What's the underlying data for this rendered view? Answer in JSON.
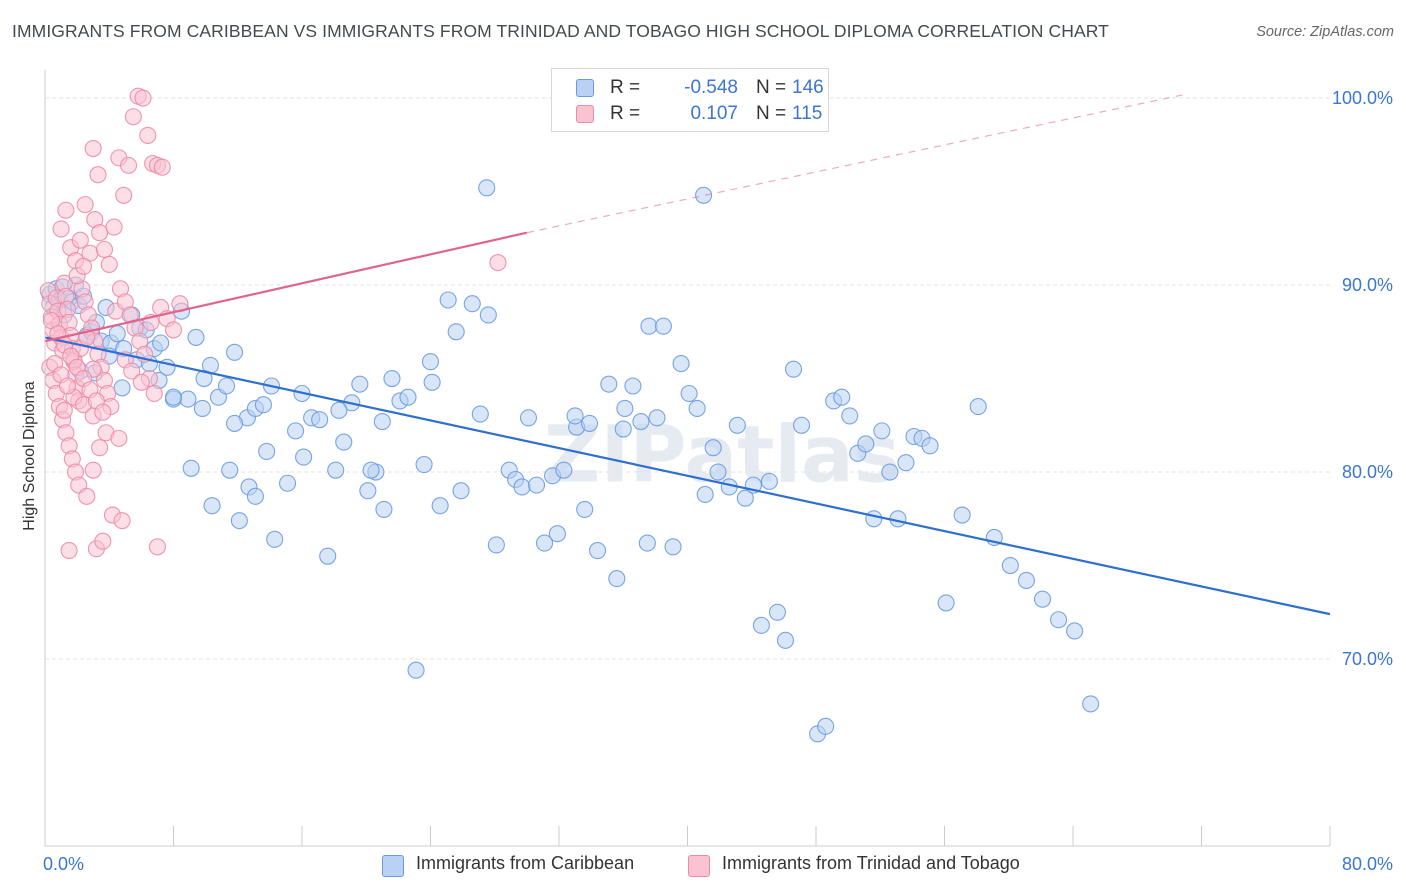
{
  "title": "IMMIGRANTS FROM CARIBBEAN VS IMMIGRANTS FROM TRINIDAD AND TOBAGO HIGH SCHOOL DIPLOMA CORRELATION CHART",
  "source": "Source: ZipAtlas.com",
  "watermark": "ZIPatlas",
  "colors": {
    "blue": "#6a9be0",
    "blue_fill": "#b9d1f2",
    "blue_line": "#2e6fd0",
    "pink": "#ec8aa8",
    "pink_fill": "#f9c3d2",
    "pink_line": "#e0648e",
    "value_text": "#3b76d2",
    "grid": "#e3e3e3"
  },
  "legend_top": {
    "rows": [
      {
        "r_label": "R =",
        "r_value": "-0.548",
        "n_label": "N =",
        "n_value": "146"
      },
      {
        "r_label": "R =",
        "r_value": "0.107",
        "n_label": "N =",
        "n_value": "115"
      }
    ]
  },
  "legend_bottom": [
    {
      "label": "Immigrants from Caribbean"
    },
    {
      "label": "Immigrants from Trinidad and Tobago"
    }
  ],
  "chart_data": {
    "type": "scatter",
    "title": "IMMIGRANTS FROM CARIBBEAN VS IMMIGRANTS FROM TRINIDAD AND TOBAGO HIGH SCHOOL DIPLOMA CORRELATION CHART",
    "xlabel": "",
    "ylabel": "High School Diploma",
    "xlim": [
      0,
      80
    ],
    "ylim": [
      60,
      101.5
    ],
    "x_tick_labels": [
      {
        "value": 0,
        "label": "0.0%"
      },
      {
        "value": 80,
        "label": "80.0%"
      }
    ],
    "y_tick_labels": [
      {
        "value": 100,
        "label": "100.0%"
      },
      {
        "value": 90,
        "label": "90.0%"
      },
      {
        "value": 80,
        "label": "80.0%"
      },
      {
        "value": 70,
        "label": "70.0%"
      }
    ],
    "x_minor_ticks": [
      8,
      16,
      24,
      32,
      40,
      48,
      56,
      64,
      72,
      80
    ],
    "grid": true,
    "series": [
      {
        "name": "Immigrants from Caribbean",
        "color": "#6a9be0",
        "R": -0.548,
        "N": 146,
        "trend": {
          "x": [
            0,
            80
          ],
          "y": [
            87.2,
            72.4
          ],
          "style": "solid"
        },
        "points": [
          [
            0.3,
            89.5
          ],
          [
            0.5,
            88.8
          ],
          [
            0.7,
            89.8
          ],
          [
            0.9,
            89.2
          ],
          [
            1.1,
            89.9
          ],
          [
            1.2,
            88.4
          ],
          [
            1.5,
            89.3
          ],
          [
            1.7,
            89.1
          ],
          [
            1.9,
            90.0
          ],
          [
            2.1,
            88.9
          ],
          [
            2.4,
            89.4
          ],
          [
            2.6,
            87.3
          ],
          [
            2.9,
            87.5
          ],
          [
            3.2,
            88.0
          ],
          [
            3.5,
            87.0
          ],
          [
            3.8,
            88.8
          ],
          [
            4.1,
            86.9
          ],
          [
            4.5,
            87.4
          ],
          [
            4.9,
            86.6
          ],
          [
            5.4,
            88.4
          ],
          [
            5.9,
            87.7
          ],
          [
            6.3,
            87.6
          ],
          [
            6.8,
            86.6
          ],
          [
            7.2,
            86.9
          ],
          [
            7.6,
            85.6
          ],
          [
            8.0,
            83.9
          ],
          [
            8.5,
            88.6
          ],
          [
            8.9,
            83.9
          ],
          [
            9.4,
            87.2
          ],
          [
            9.8,
            83.4
          ],
          [
            10.3,
            85.7
          ],
          [
            10.8,
            84.0
          ],
          [
            11.3,
            84.6
          ],
          [
            11.8,
            86.4
          ],
          [
            12.6,
            82.9
          ],
          [
            13.1,
            83.4
          ],
          [
            13.6,
            83.6
          ],
          [
            14.1,
            84.6
          ],
          [
            4.8,
            84.5
          ],
          [
            9.1,
            80.2
          ],
          [
            10.4,
            78.2
          ],
          [
            11.5,
            80.1
          ],
          [
            12.1,
            77.4
          ],
          [
            12.7,
            79.2
          ],
          [
            13.1,
            78.7
          ],
          [
            13.8,
            81.1
          ],
          [
            14.3,
            76.4
          ],
          [
            15.1,
            79.4
          ],
          [
            15.6,
            82.2
          ],
          [
            16.1,
            80.8
          ],
          [
            16.6,
            82.9
          ],
          [
            17.1,
            82.8
          ],
          [
            17.6,
            75.5
          ],
          [
            18.1,
            80.1
          ],
          [
            18.6,
            81.6
          ],
          [
            19.6,
            84.7
          ],
          [
            20.1,
            79.0
          ],
          [
            20.6,
            80.0
          ],
          [
            21.1,
            78.0
          ],
          [
            21.6,
            85.0
          ],
          [
            22.1,
            83.8
          ],
          [
            22.6,
            84.0
          ],
          [
            23.1,
            69.4
          ],
          [
            23.6,
            80.4
          ],
          [
            24.1,
            84.8
          ],
          [
            24.6,
            78.2
          ],
          [
            25.1,
            89.2
          ],
          [
            25.6,
            87.5
          ],
          [
            25.9,
            79.0
          ],
          [
            26.6,
            89.0
          ],
          [
            27.1,
            83.1
          ],
          [
            27.6,
            88.4
          ],
          [
            28.1,
            76.1
          ],
          [
            28.9,
            80.1
          ],
          [
            29.3,
            79.6
          ],
          [
            29.7,
            79.2
          ],
          [
            30.1,
            82.9
          ],
          [
            30.6,
            79.3
          ],
          [
            31.1,
            76.2
          ],
          [
            31.6,
            79.8
          ],
          [
            31.9,
            76.7
          ],
          [
            32.3,
            80.1
          ],
          [
            33.1,
            82.4
          ],
          [
            33.6,
            78.0
          ],
          [
            33.9,
            82.6
          ],
          [
            34.4,
            75.8
          ],
          [
            35.1,
            84.7
          ],
          [
            35.6,
            74.3
          ],
          [
            36.1,
            83.4
          ],
          [
            36.6,
            84.6
          ],
          [
            37.1,
            82.7
          ],
          [
            37.6,
            87.8
          ],
          [
            38.1,
            82.9
          ],
          [
            38.5,
            87.8
          ],
          [
            39.1,
            76.0
          ],
          [
            39.6,
            85.8
          ],
          [
            40.1,
            84.2
          ],
          [
            40.6,
            83.4
          ],
          [
            41.1,
            78.8
          ],
          [
            41.6,
            81.3
          ],
          [
            41.9,
            80.0
          ],
          [
            42.6,
            79.2
          ],
          [
            43.1,
            82.5
          ],
          [
            43.6,
            78.6
          ],
          [
            44.1,
            79.3
          ],
          [
            44.6,
            71.8
          ],
          [
            45.1,
            79.5
          ],
          [
            45.6,
            72.5
          ],
          [
            46.1,
            71.0
          ],
          [
            46.6,
            85.5
          ],
          [
            47.1,
            82.5
          ],
          [
            48.1,
            66.0
          ],
          [
            48.6,
            66.4
          ],
          [
            49.1,
            83.8
          ],
          [
            49.6,
            84.0
          ],
          [
            50.1,
            83.0
          ],
          [
            50.6,
            81.0
          ],
          [
            51.1,
            81.5
          ],
          [
            51.6,
            77.5
          ],
          [
            52.1,
            82.2
          ],
          [
            52.6,
            80.0
          ],
          [
            53.1,
            77.5
          ],
          [
            53.6,
            80.5
          ],
          [
            54.1,
            81.9
          ],
          [
            54.6,
            81.8
          ],
          [
            55.1,
            81.4
          ],
          [
            56.1,
            73.0
          ],
          [
            57.1,
            77.7
          ],
          [
            58.1,
            83.5
          ],
          [
            59.1,
            76.5
          ],
          [
            60.1,
            75.0
          ],
          [
            61.1,
            74.2
          ],
          [
            62.1,
            73.2
          ],
          [
            63.1,
            72.1
          ],
          [
            64.1,
            71.5
          ],
          [
            65.1,
            67.6
          ],
          [
            37.5,
            76.2
          ],
          [
            27.5,
            95.2
          ],
          [
            41.0,
            94.8
          ],
          [
            16.0,
            84.2
          ],
          [
            19.1,
            83.7
          ],
          [
            20.3,
            80.1
          ],
          [
            21.0,
            82.7
          ],
          [
            3.1,
            85.3
          ],
          [
            7.1,
            84.9
          ],
          [
            9.9,
            85.0
          ],
          [
            11.8,
            82.6
          ],
          [
            5.7,
            86.0
          ],
          [
            6.5,
            85.8
          ],
          [
            2.2,
            85.4
          ],
          [
            4.0,
            86.2
          ],
          [
            8.0,
            84.0
          ],
          [
            36.0,
            82.3
          ],
          [
            33.0,
            83.0
          ],
          [
            24.0,
            85.9
          ],
          [
            18.3,
            83.3
          ]
        ]
      },
      {
        "name": "Immigrants from Trinidad and Tobago",
        "color": "#ec8aa8",
        "R": 0.107,
        "N": 115,
        "trend": {
          "x": [
            0,
            30
          ],
          "y": [
            87.0,
            92.8
          ],
          "style": "solid"
        },
        "trend_extension": {
          "x": [
            30,
            71
          ],
          "y": [
            92.8,
            100.2
          ],
          "style": "dashed"
        },
        "points": [
          [
            0.2,
            89.7
          ],
          [
            0.3,
            89.0
          ],
          [
            0.4,
            88.3
          ],
          [
            0.5,
            87.6
          ],
          [
            0.6,
            86.9
          ],
          [
            0.7,
            89.3
          ],
          [
            0.8,
            88.6
          ],
          [
            0.9,
            87.9
          ],
          [
            1.0,
            87.2
          ],
          [
            1.1,
            86.5
          ],
          [
            1.2,
            90.1
          ],
          [
            1.3,
            89.4
          ],
          [
            1.4,
            88.7
          ],
          [
            1.5,
            88.0
          ],
          [
            1.6,
            87.3
          ],
          [
            1.7,
            86.6
          ],
          [
            1.8,
            85.9
          ],
          [
            1.9,
            85.2
          ],
          [
            2.0,
            84.5
          ],
          [
            2.1,
            83.8
          ],
          [
            0.3,
            85.6
          ],
          [
            0.5,
            84.9
          ],
          [
            0.7,
            84.2
          ],
          [
            0.9,
            83.5
          ],
          [
            1.1,
            82.8
          ],
          [
            1.3,
            82.1
          ],
          [
            1.5,
            81.4
          ],
          [
            1.7,
            80.7
          ],
          [
            1.9,
            80.0
          ],
          [
            2.1,
            79.3
          ],
          [
            2.3,
            89.8
          ],
          [
            2.5,
            89.1
          ],
          [
            2.7,
            88.4
          ],
          [
            2.9,
            87.7
          ],
          [
            3.1,
            87.0
          ],
          [
            3.3,
            86.3
          ],
          [
            3.5,
            85.6
          ],
          [
            3.7,
            84.9
          ],
          [
            3.9,
            84.2
          ],
          [
            4.1,
            83.5
          ],
          [
            1.0,
            93.0
          ],
          [
            1.3,
            94.0
          ],
          [
            1.6,
            92.0
          ],
          [
            1.9,
            91.3
          ],
          [
            2.2,
            92.4
          ],
          [
            2.5,
            94.3
          ],
          [
            2.8,
            91.7
          ],
          [
            3.1,
            93.5
          ],
          [
            3.4,
            92.8
          ],
          [
            3.7,
            91.9
          ],
          [
            4.0,
            91.1
          ],
          [
            4.3,
            93.1
          ],
          [
            4.6,
            96.8
          ],
          [
            4.9,
            94.8
          ],
          [
            5.2,
            96.4
          ],
          [
            5.5,
            99.0
          ],
          [
            5.8,
            100.1
          ],
          [
            6.1,
            100.0
          ],
          [
            6.4,
            98.0
          ],
          [
            6.7,
            96.5
          ],
          [
            7.0,
            96.4
          ],
          [
            7.3,
            96.3
          ],
          [
            3.0,
            97.3
          ],
          [
            3.3,
            95.9
          ],
          [
            2.0,
            90.5
          ],
          [
            2.4,
            91.0
          ],
          [
            4.4,
            88.6
          ],
          [
            4.7,
            89.8
          ],
          [
            5.0,
            89.1
          ],
          [
            5.3,
            88.4
          ],
          [
            5.6,
            87.7
          ],
          [
            5.9,
            87.0
          ],
          [
            6.2,
            86.3
          ],
          [
            6.5,
            85.0
          ],
          [
            6.8,
            84.2
          ],
          [
            1.5,
            75.8
          ],
          [
            3.2,
            75.9
          ],
          [
            3.6,
            76.3
          ],
          [
            4.2,
            77.7
          ],
          [
            4.8,
            77.4
          ],
          [
            7.0,
            76.0
          ],
          [
            2.6,
            78.7
          ],
          [
            3.0,
            80.1
          ],
          [
            3.4,
            81.3
          ],
          [
            3.8,
            82.1
          ],
          [
            4.6,
            81.8
          ],
          [
            1.2,
            83.3
          ],
          [
            1.8,
            84.0
          ],
          [
            2.4,
            83.6
          ],
          [
            3.0,
            83.0
          ],
          [
            0.6,
            85.8
          ],
          [
            1.0,
            85.2
          ],
          [
            1.4,
            84.6
          ],
          [
            1.8,
            86.0
          ],
          [
            2.2,
            86.6
          ],
          [
            2.6,
            87.2
          ],
          [
            3.0,
            85.5
          ],
          [
            5.0,
            86.0
          ],
          [
            5.4,
            85.4
          ],
          [
            6.0,
            84.8
          ],
          [
            6.6,
            88.0
          ],
          [
            7.2,
            88.8
          ],
          [
            7.6,
            88.2
          ],
          [
            8.0,
            87.6
          ],
          [
            8.4,
            89.0
          ],
          [
            28.2,
            91.2
          ],
          [
            0.4,
            88.1
          ],
          [
            0.8,
            87.4
          ],
          [
            1.2,
            86.8
          ],
          [
            1.6,
            86.2
          ],
          [
            2.0,
            85.6
          ],
          [
            2.4,
            85.0
          ],
          [
            2.8,
            84.4
          ],
          [
            3.2,
            83.8
          ],
          [
            3.6,
            83.2
          ]
        ]
      }
    ]
  }
}
